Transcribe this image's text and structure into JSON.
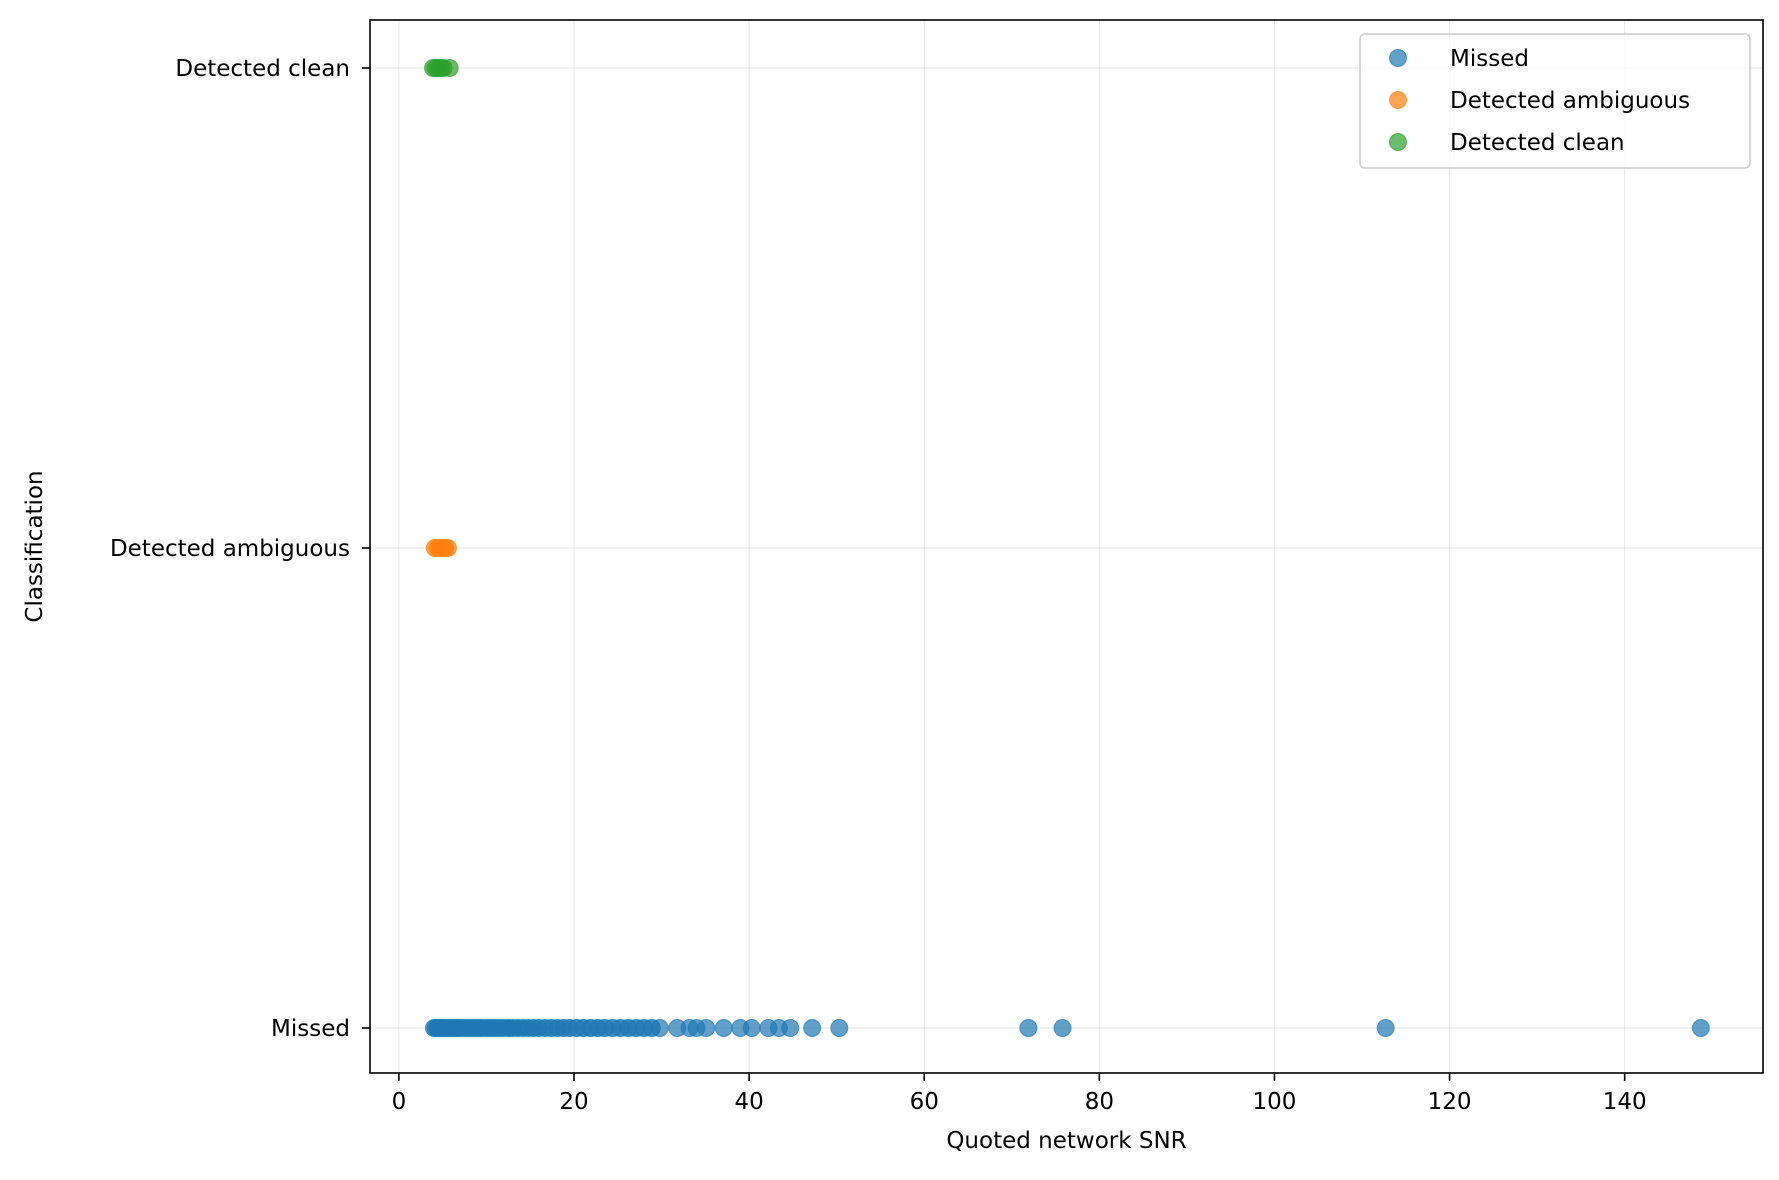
{
  "chart_data": {
    "type": "scatter",
    "title": "",
    "xlabel": "Quoted network SNR",
    "ylabel": "Classification",
    "xlim": [
      -3.3,
      155.8
    ],
    "xticks": [
      0,
      20,
      40,
      60,
      80,
      100,
      120,
      140
    ],
    "xtick_labels": [
      "0",
      "20",
      "40",
      "60",
      "80",
      "100",
      "120",
      "140"
    ],
    "categories": [
      "Missed",
      "Detected ambiguous",
      "Detected clean"
    ],
    "grid": true,
    "legend_position": "top-right",
    "series": [
      {
        "name": "Missed",
        "color": "#1f77b4",
        "category": "Missed",
        "x": [
          4.0,
          4.2,
          4.4,
          4.6,
          4.8,
          5.0,
          5.3,
          5.6,
          5.9,
          6.2,
          6.5,
          6.8,
          7.1,
          7.5,
          7.9,
          8.3,
          8.7,
          9.1,
          9.5,
          10.0,
          10.5,
          11.0,
          11.5,
          12.0,
          12.5,
          13.0,
          13.6,
          14.2,
          14.8,
          15.4,
          16.0,
          16.7,
          17.4,
          18.1,
          18.8,
          19.5,
          20.3,
          21.1,
          21.9,
          22.7,
          23.5,
          24.4,
          25.3,
          26.2,
          27.1,
          28.0,
          28.9,
          29.8,
          31.8,
          33.2,
          34.0,
          35.1,
          37.1,
          39.0,
          40.3,
          42.2,
          43.4,
          44.7,
          47.2,
          50.3,
          71.9,
          75.8,
          112.7,
          148.7
        ],
        "alpha": 0.7
      },
      {
        "name": "Detected ambiguous",
        "color": "#ff7f0e",
        "category": "Detected ambiguous",
        "x": [
          4.1,
          4.4,
          4.7,
          5.0,
          5.3,
          5.6
        ],
        "alpha": 0.7
      },
      {
        "name": "Detected clean",
        "color": "#2ca02c",
        "category": "Detected clean",
        "x": [
          3.9,
          4.2,
          4.5,
          4.8,
          5.1,
          5.8
        ],
        "alpha": 0.7
      }
    ]
  }
}
